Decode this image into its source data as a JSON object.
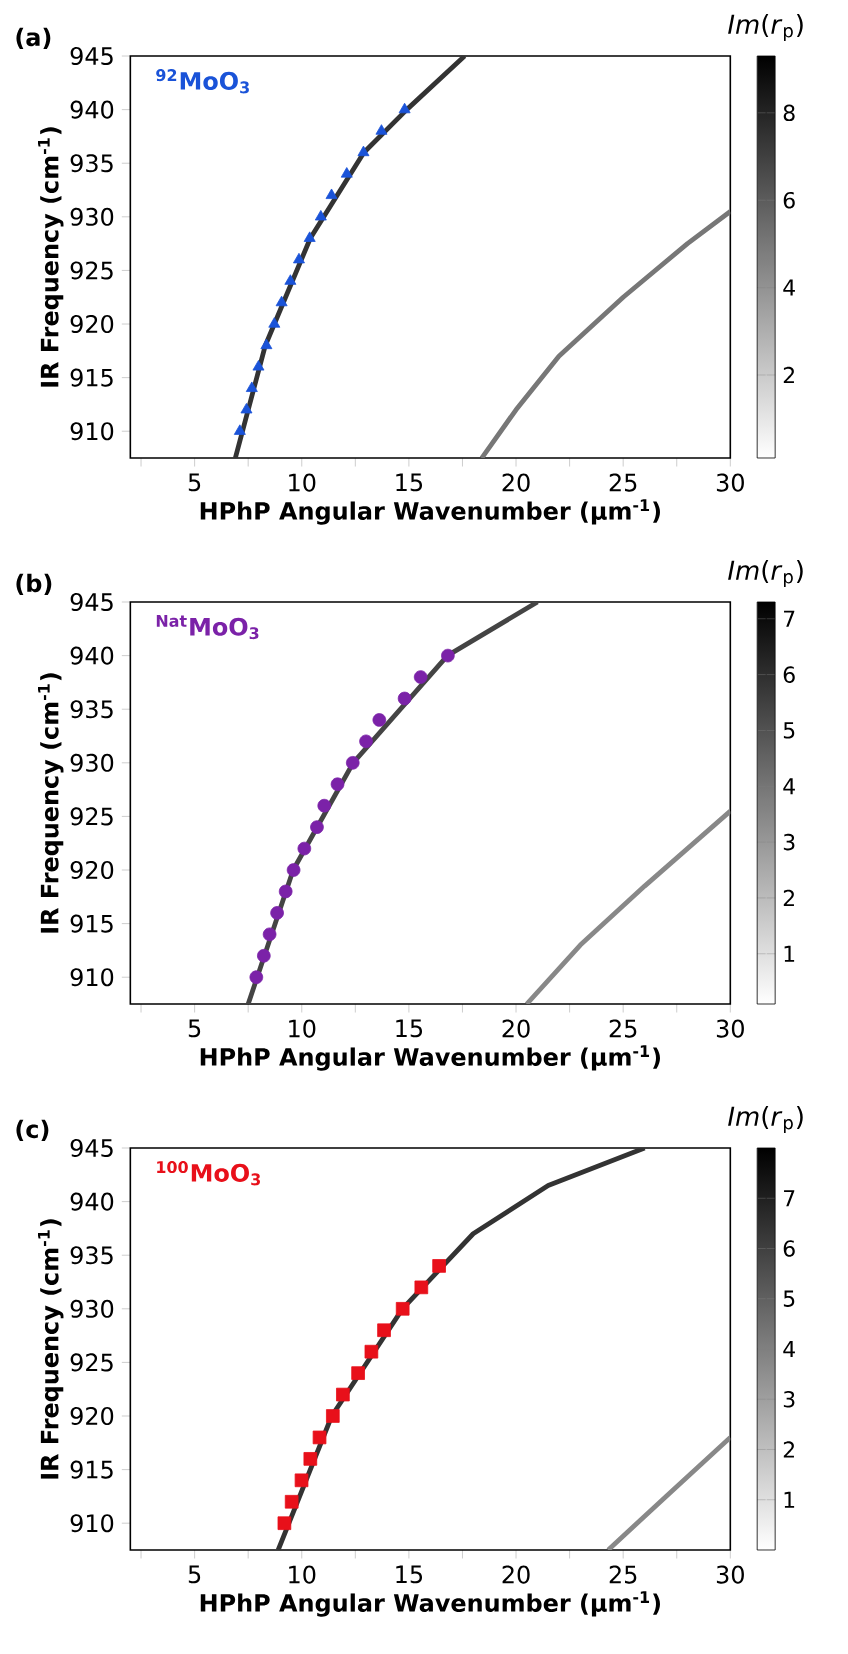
{
  "chart_data": [
    {
      "type": "scatter",
      "annotations": [
        "(a)"
      ],
      "xlabel": "HPhP Angular Wavenumber (µm$^{-1}$)",
      "ylabel": "IR Frequency (cm$^{-1}$)",
      "clabel": "*Im*(*r*$_{p}$)",
      "xlim": [
        2,
        30
      ],
      "ylim": [
        907.5,
        945
      ],
      "xticks": [
        {
          "value": 2.5,
          "label": null
        },
        5,
        {
          "value": 7.5,
          "label": null
        },
        10,
        {
          "value": 12.5,
          "label": null
        },
        15,
        {
          "value": 17.5,
          "label": null
        },
        20,
        {
          "value": 22.5,
          "label": null
        },
        25,
        {
          "value": 27.5,
          "label": null
        },
        30
      ],
      "yticks": [
        910,
        915,
        920,
        925,
        930,
        935,
        940,
        945
      ],
      "clim": [
        0.1,
        9.3
      ],
      "cticks": [
        2,
        4,
        6,
        8
      ],
      "series": [
        {
          "name": "$^{92}$MoO$_{3}$",
          "marker": "triangle",
          "color": "#1a53d8",
          "x": [
            7.11,
            7.42,
            7.67,
            7.98,
            8.35,
            8.72,
            9.06,
            9.47,
            9.87,
            10.37,
            10.89,
            11.39,
            12.1,
            12.88,
            13.72,
            14.8
          ],
          "values": [
            910,
            912,
            914,
            916,
            918,
            920,
            922,
            924,
            926,
            928,
            930,
            932,
            934,
            936,
            938,
            940
          ]
        },
        {
          "type": "line",
          "color": "#333333",
          "x": [
            6.9,
            8.3,
            10.4,
            12.9,
            14.9,
            17.6
          ],
          "values": [
            907.5,
            918,
            928,
            936,
            940,
            945
          ]
        },
        {
          "type": "line",
          "color": "#777777",
          "x": [
            18.4,
            20,
            22,
            25,
            28,
            30
          ],
          "values": [
            907.5,
            912,
            917,
            922.5,
            927.5,
            930.5
          ]
        }
      ]
    },
    {
      "type": "scatter",
      "annotations": [
        "(b)"
      ],
      "xlabel": "HPhP Angular Wavenumber (µm$^{-1}$)",
      "ylabel": "IR Frequency (cm$^{-1}$)",
      "clabel": "*Im*(*r*$_{p}$)",
      "xlim": [
        2,
        30
      ],
      "ylim": [
        907.5,
        945
      ],
      "xticks": [
        {
          "value": 2.5,
          "label": null
        },
        5,
        {
          "value": 7.5,
          "label": null
        },
        10,
        {
          "value": 12.5,
          "label": null
        },
        15,
        {
          "value": 17.5,
          "label": null
        },
        20,
        {
          "value": 22.5,
          "label": null
        },
        25,
        {
          "value": 27.5,
          "label": null
        },
        30
      ],
      "yticks": [
        910,
        915,
        920,
        925,
        930,
        935,
        940,
        945
      ],
      "clim": [
        0.1,
        7.3
      ],
      "cticks": [
        1,
        2,
        3,
        4,
        5,
        6,
        7
      ],
      "series": [
        {
          "name": "$^{Nat}$MoO$_{3}$",
          "marker": "circle",
          "color": "#7b22a8",
          "x": [
            7.88,
            8.23,
            8.5,
            8.85,
            9.25,
            9.62,
            10.12,
            10.71,
            11.05,
            11.67,
            12.38,
            13.0,
            13.62,
            14.8,
            15.55,
            16.82
          ],
          "values": [
            910,
            912,
            914,
            916,
            918,
            920,
            922,
            924,
            926,
            928,
            930,
            932,
            934,
            936,
            938,
            940
          ]
        },
        {
          "type": "line",
          "color": "#444444",
          "x": [
            7.5,
            9.6,
            12.4,
            16.8,
            21
          ],
          "values": [
            907.5,
            920,
            930,
            940,
            945
          ]
        },
        {
          "type": "line",
          "color": "#888888",
          "x": [
            20.5,
            23,
            26,
            30
          ],
          "values": [
            907.5,
            913,
            918.5,
            925.5
          ]
        }
      ]
    },
    {
      "type": "scatter",
      "annotations": [
        "(c)"
      ],
      "xlabel": "HPhP Angular Wavenumber (µm$^{-1}$)",
      "ylabel": "IR Frequency (cm$^{-1}$)",
      "clabel": "*Im*(*r*$_{p}$)",
      "xlim": [
        2,
        30
      ],
      "ylim": [
        907.5,
        945
      ],
      "xticks": [
        {
          "value": 2.5,
          "label": null
        },
        5,
        {
          "value": 7.5,
          "label": null
        },
        10,
        {
          "value": 12.5,
          "label": null
        },
        15,
        {
          "value": 17.5,
          "label": null
        },
        20,
        {
          "value": 22.5,
          "label": null
        },
        25,
        {
          "value": 27.5,
          "label": null
        },
        30
      ],
      "yticks": [
        910,
        915,
        920,
        925,
        930,
        935,
        940,
        945
      ],
      "clim": [
        0,
        8
      ],
      "cticks": [
        1,
        2,
        3,
        4,
        5,
        6,
        7
      ],
      "series": [
        {
          "name": "$^{100}$MoO$_{3}$",
          "marker": "square",
          "color": "#e8101a",
          "x": [
            9.19,
            9.53,
            9.99,
            10.4,
            10.83,
            11.45,
            11.92,
            12.63,
            13.25,
            13.84,
            14.71,
            15.58,
            16.41
          ],
          "values": [
            910,
            912,
            914,
            916,
            918,
            920,
            922,
            924,
            926,
            928,
            930,
            932,
            934
          ]
        },
        {
          "type": "line",
          "color": "#333333",
          "x": [
            8.9,
            11.4,
            14.7,
            18,
            21.5,
            26
          ],
          "values": [
            907.5,
            920,
            930,
            937,
            941.5,
            945
          ]
        },
        {
          "type": "line",
          "color": "#888888",
          "x": [
            24.3,
            27,
            30
          ],
          "values": [
            907.5,
            912.5,
            918
          ]
        }
      ]
    }
  ]
}
